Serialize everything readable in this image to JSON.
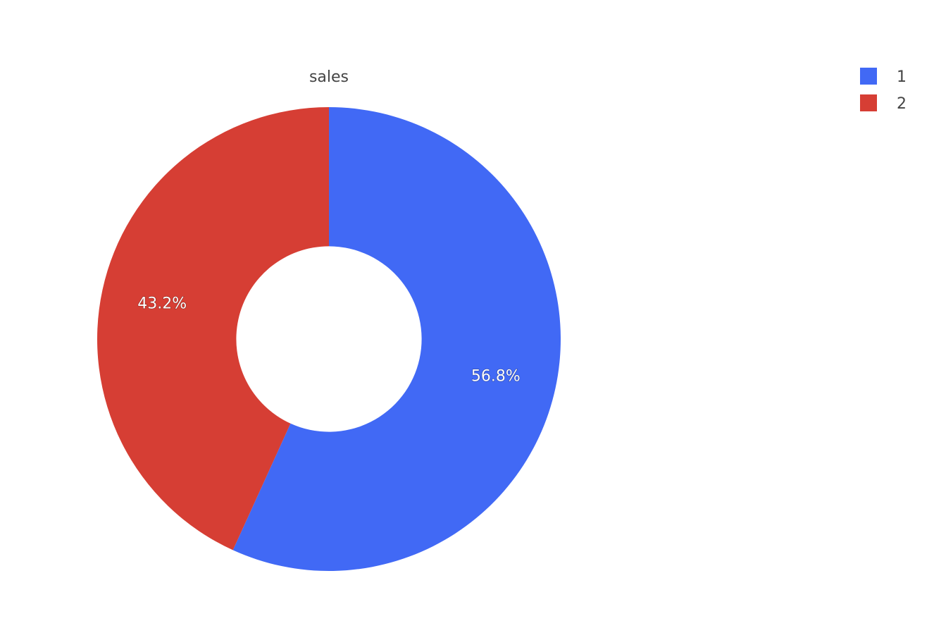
{
  "chart_data": {
    "type": "pie",
    "title": "sales",
    "hole": 0.4,
    "legend_position": "top-right",
    "slices": [
      {
        "label": "1",
        "value": 56.8,
        "percent_text": "56.8%",
        "color": "#4169f5"
      },
      {
        "label": "2",
        "value": 43.2,
        "percent_text": "43.2%",
        "color": "#d63e34"
      }
    ]
  }
}
